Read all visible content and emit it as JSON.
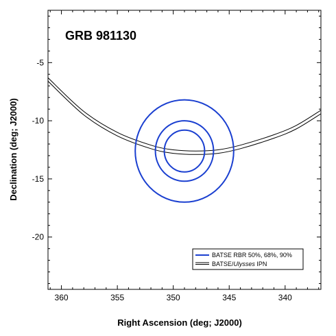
{
  "chart_data": {
    "type": "line",
    "title": "GRB 981130",
    "xlabel": "Right Ascension (deg; J2000)",
    "ylabel": "Declination (deg; J2000)",
    "xlim": [
      361.2,
      336.8
    ],
    "ylim": [
      -24.5,
      -0.5
    ],
    "xticks": [
      360,
      355,
      350,
      345,
      340
    ],
    "yticks": [
      -5,
      -10,
      -15,
      -20
    ],
    "grid": false,
    "legend_position": "bottom-right",
    "colors": {
      "batse_circles": "#1a3fd0",
      "ipn_annulus": "#000000"
    },
    "series": [
      {
        "name": "BATSE RBR 50%, 68%, 90%",
        "kind": "confidence-circles",
        "center": {
          "ra": 349.0,
          "dec": -12.6
        },
        "radii_deg": [
          1.8,
          2.6,
          4.4
        ]
      },
      {
        "name": "BATSE/Ulysses IPN",
        "kind": "annulus-arc",
        "lines": [
          {
            "x": [
              361.2,
              358.0,
              355.0,
              352.0,
              350.0,
              348.0,
              346.0,
              344.0,
              341.0,
              339.0,
              336.8
            ],
            "y": [
              -6.3,
              -9.2,
              -11.0,
              -12.1,
              -12.5,
              -12.6,
              -12.5,
              -12.1,
              -11.2,
              -10.4,
              -9.1
            ]
          },
          {
            "x": [
              361.2,
              358.0,
              355.0,
              352.0,
              350.0,
              348.0,
              346.0,
              344.0,
              341.0,
              339.0,
              336.8
            ],
            "y": [
              -6.6,
              -9.5,
              -11.3,
              -12.4,
              -12.8,
              -12.9,
              -12.8,
              -12.4,
              -11.5,
              -10.7,
              -9.4
            ]
          }
        ]
      }
    ],
    "legend": {
      "blue_label": "BATSE RBR 50%, 68%, 90%",
      "black_prefix": "BATSE/",
      "black_italic": "Ulysses",
      "black_suffix": " IPN"
    }
  }
}
